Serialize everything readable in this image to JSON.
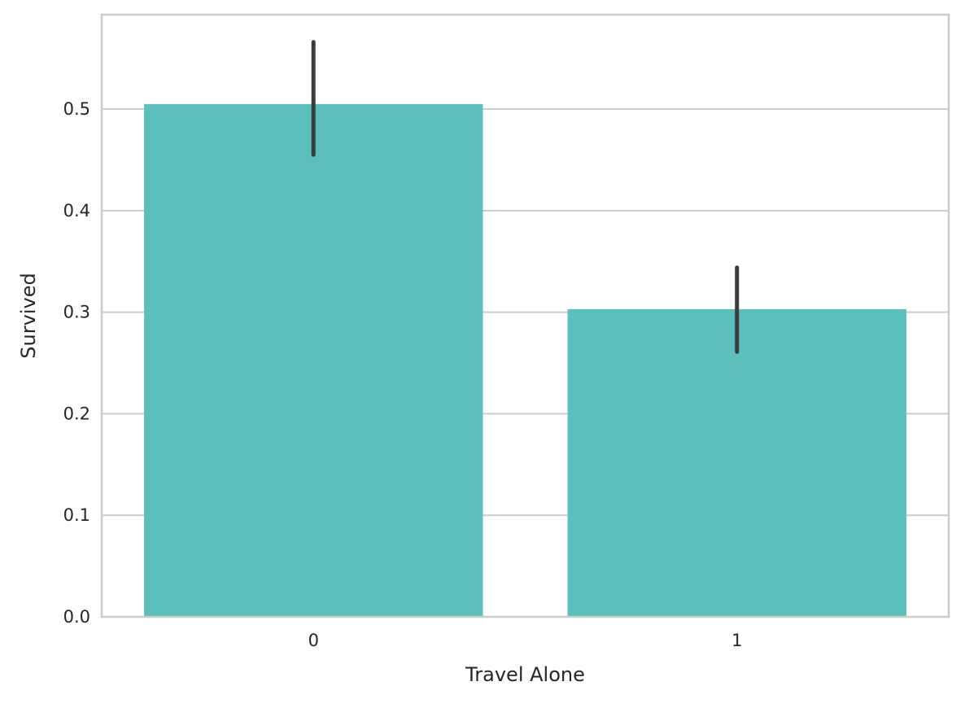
{
  "chart_data": {
    "type": "bar",
    "categories": [
      "0",
      "1"
    ],
    "values": [
      0.505,
      0.303
    ],
    "error_intervals": [
      [
        0.455,
        0.566
      ],
      [
        0.261,
        0.344
      ]
    ],
    "xlabel": "Travel Alone",
    "ylabel": "Survived",
    "ylim": [
      0,
      0.593
    ],
    "yticks": [
      0.0,
      0.1,
      0.2,
      0.3,
      0.4,
      0.5
    ],
    "ytick_labels": [
      "0.0",
      "0.1",
      "0.2",
      "0.3",
      "0.4",
      "0.5"
    ],
    "grid": "horizontal",
    "bar_color": "#5bc0bc",
    "errorbar_color": "#3b3b3b"
  }
}
